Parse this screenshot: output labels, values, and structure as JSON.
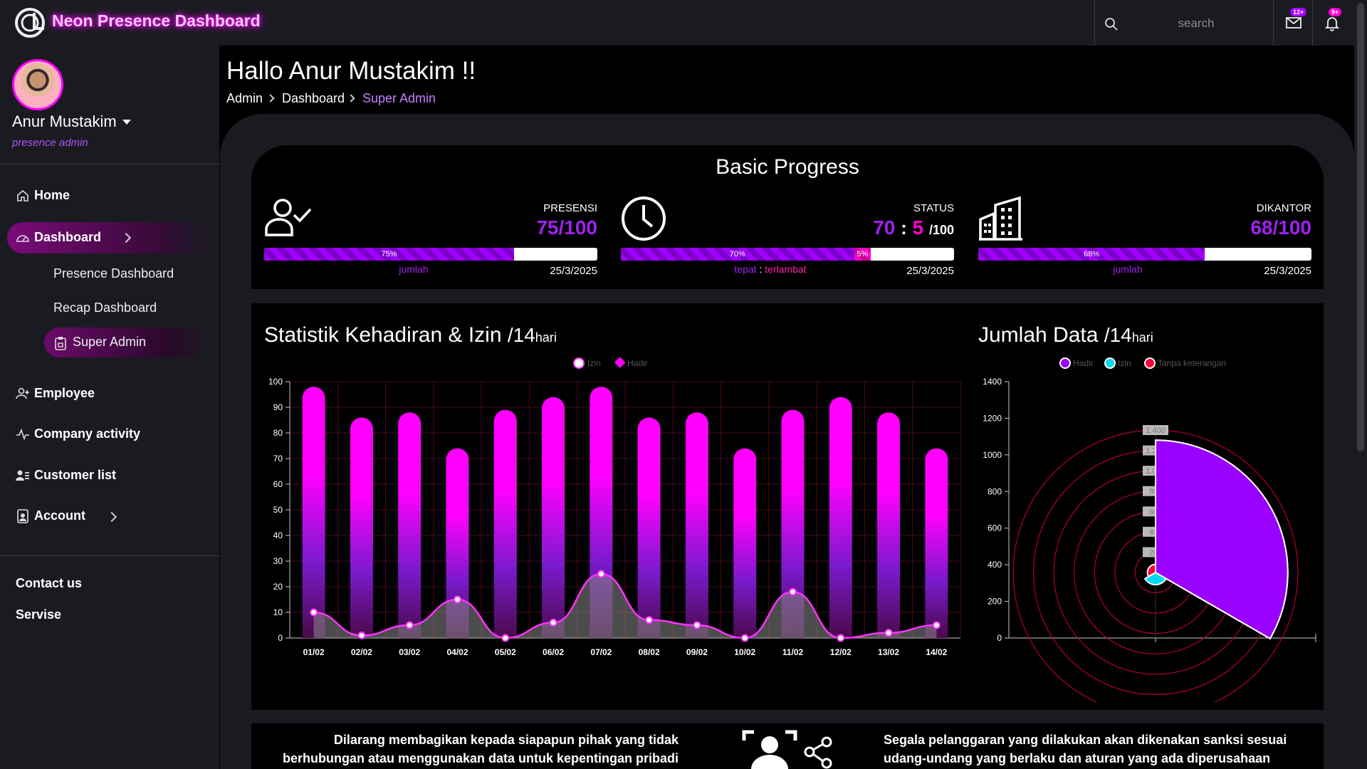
{
  "app": {
    "title": "Neon Presence Dashboard"
  },
  "search": {
    "placeholder": "search"
  },
  "notifications": {
    "mail_badge": "12+",
    "bell_badge": "9+"
  },
  "user": {
    "name": "Anur Mustakim",
    "role": "presence admin"
  },
  "sidebar": {
    "items": [
      {
        "label": "Home"
      },
      {
        "label": "Dashboard"
      },
      {
        "label": "Employee"
      },
      {
        "label": "Company activity"
      },
      {
        "label": "Customer list"
      },
      {
        "label": "Account"
      }
    ],
    "sub_items": [
      {
        "label": "Presence Dashboard"
      },
      {
        "label": "Recap Dashboard"
      },
      {
        "label": "Super Admin"
      }
    ],
    "footer": [
      {
        "label": "Contact us"
      },
      {
        "label": "Servise"
      }
    ]
  },
  "header": {
    "greeting": "Hallo Anur Mustakim !!",
    "breadcrumb": [
      "Admin",
      "Dashboard",
      "Super Admin"
    ]
  },
  "progress": {
    "title": "Basic Progress",
    "presensi": {
      "label": "PRESENSI",
      "value": "75/100",
      "bar_label": "75%",
      "percent": 75,
      "caption": "jumlah",
      "date": "25/3/2025"
    },
    "status": {
      "label": "STATUS",
      "ontime": "70",
      "separator": ":",
      "late": "5",
      "total": "/100",
      "ontime_label": "70%",
      "ontime_percent": 70,
      "late_label": "5%",
      "late_percent": 5,
      "caption_ontime": "tepat",
      "caption_sep": ":",
      "caption_late": "terlambat",
      "date": "25/3/2025"
    },
    "dikantor": {
      "label": "DIKANTOR",
      "value": "68/100",
      "bar_label": "68%",
      "percent": 68,
      "caption": "jumlah",
      "date": "25/3/2025"
    }
  },
  "attendance_chart": {
    "title": "Statistik Kehadiran & Izin",
    "period": "/14",
    "period_unit": "hari"
  },
  "quantity_chart": {
    "title": "Jumlah Data",
    "period": "/14",
    "period_unit": "hari"
  },
  "chart_data": [
    {
      "type": "bar",
      "title": "Statistik Kehadiran & Izin /14hari",
      "categories": [
        "01/02",
        "02/02",
        "03/02",
        "04/02",
        "05/02",
        "06/02",
        "07/02",
        "08/02",
        "09/02",
        "10/02",
        "11/02",
        "12/02",
        "13/02",
        "14/02"
      ],
      "series": [
        {
          "name": "Hadir",
          "type": "bar",
          "values": [
            98,
            86,
            88,
            74,
            89,
            94,
            98,
            86,
            88,
            74,
            89,
            94,
            88,
            74
          ]
        },
        {
          "name": "Izin",
          "type": "area",
          "values": [
            10,
            1,
            5,
            15,
            0,
            6,
            25,
            7,
            5,
            0,
            18,
            0,
            2,
            5
          ]
        }
      ],
      "ylim": [
        0,
        100
      ],
      "yticks": [
        0,
        10,
        20,
        30,
        40,
        50,
        60,
        70,
        80,
        90,
        100
      ],
      "legend": "top-center",
      "grid": true,
      "colors": {
        "bar_top": "#ff00ff",
        "bar_mid": "#7a1acc",
        "bar_bottom": "#4a0a4a",
        "line": "#ff33ff",
        "area": "#8a8a8a"
      }
    },
    {
      "type": "polarArea",
      "title": "Jumlah Data /14hari",
      "categories": [
        "Hadir",
        "Izin",
        "Tanpa keterangan"
      ],
      "values": [
        1300,
        60,
        25
      ],
      "ylim": [
        0,
        1400
      ],
      "yticks": [
        0,
        200,
        400,
        600,
        800,
        1000,
        1200,
        1400
      ],
      "radial_ticks": [
        "1.400",
        "1.200",
        "1.000",
        "800",
        "600",
        "400",
        "200"
      ],
      "legend": "top-center",
      "colors": {
        "Hadir": "#9900ff",
        "Izin": "#00d8f0",
        "Tanpa keterangan": "#ff0033",
        "grid": "#b3002a"
      }
    }
  ],
  "notice": {
    "left": "Dilarang membagikan kepada siapapun pihak yang tidak berhubungan atau menggunakan data untuk kepentingan pribadi",
    "right": "Segala pelanggaran yang dilakukan akan dikenakan sanksi sesuai udang-undang yang berlaku dan aturan yang ada diperusahaan"
  }
}
